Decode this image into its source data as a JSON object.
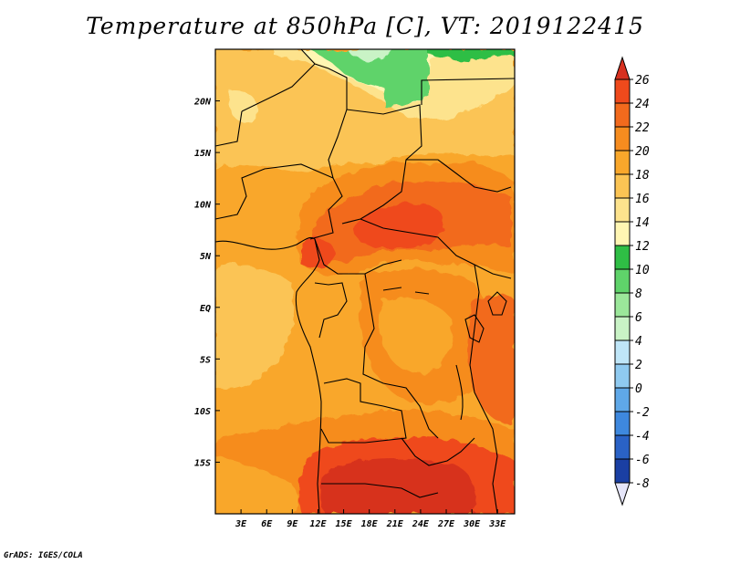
{
  "title": "Temperature at 850hPa [C], VT: 2019122415",
  "credit": "GrADS: IGES/COLA",
  "map": {
    "lon_range": [
      0,
      35
    ],
    "lat_range": [
      -20,
      25
    ],
    "x_ticks": [
      "3E",
      "6E",
      "9E",
      "12E",
      "15E",
      "18E",
      "21E",
      "24E",
      "27E",
      "30E",
      "33E"
    ],
    "x_tick_values": [
      3,
      6,
      9,
      12,
      15,
      18,
      21,
      24,
      27,
      30,
      33
    ],
    "y_ticks": [
      "20N",
      "15N",
      "10N",
      "5N",
      "EQ",
      "5S",
      "10S",
      "15S"
    ],
    "y_tick_values": [
      20,
      15,
      10,
      5,
      0,
      -5,
      -10,
      -15
    ]
  },
  "colorbar": {
    "labels": [
      "26",
      "24",
      "22",
      "20",
      "18",
      "16",
      "14",
      "12",
      "10",
      "8",
      "6",
      "4",
      "2",
      "0",
      "-2",
      "-4",
      "-6",
      "-8"
    ],
    "colors": [
      "#d7301f",
      "#ef4a1c",
      "#f26a1d",
      "#f68c1f",
      "#f9a72b",
      "#fbc454",
      "#fde38d",
      "#fff6b3",
      "#2fbe45",
      "#5fd36a",
      "#9be79a",
      "#c9f3c6",
      "#bfe6f8",
      "#8fcaf0",
      "#5fa8e8",
      "#3e88de",
      "#2a62c6",
      "#1a3fa3",
      "#0f2277",
      "#05094a",
      "#e6e6fa"
    ]
  }
}
